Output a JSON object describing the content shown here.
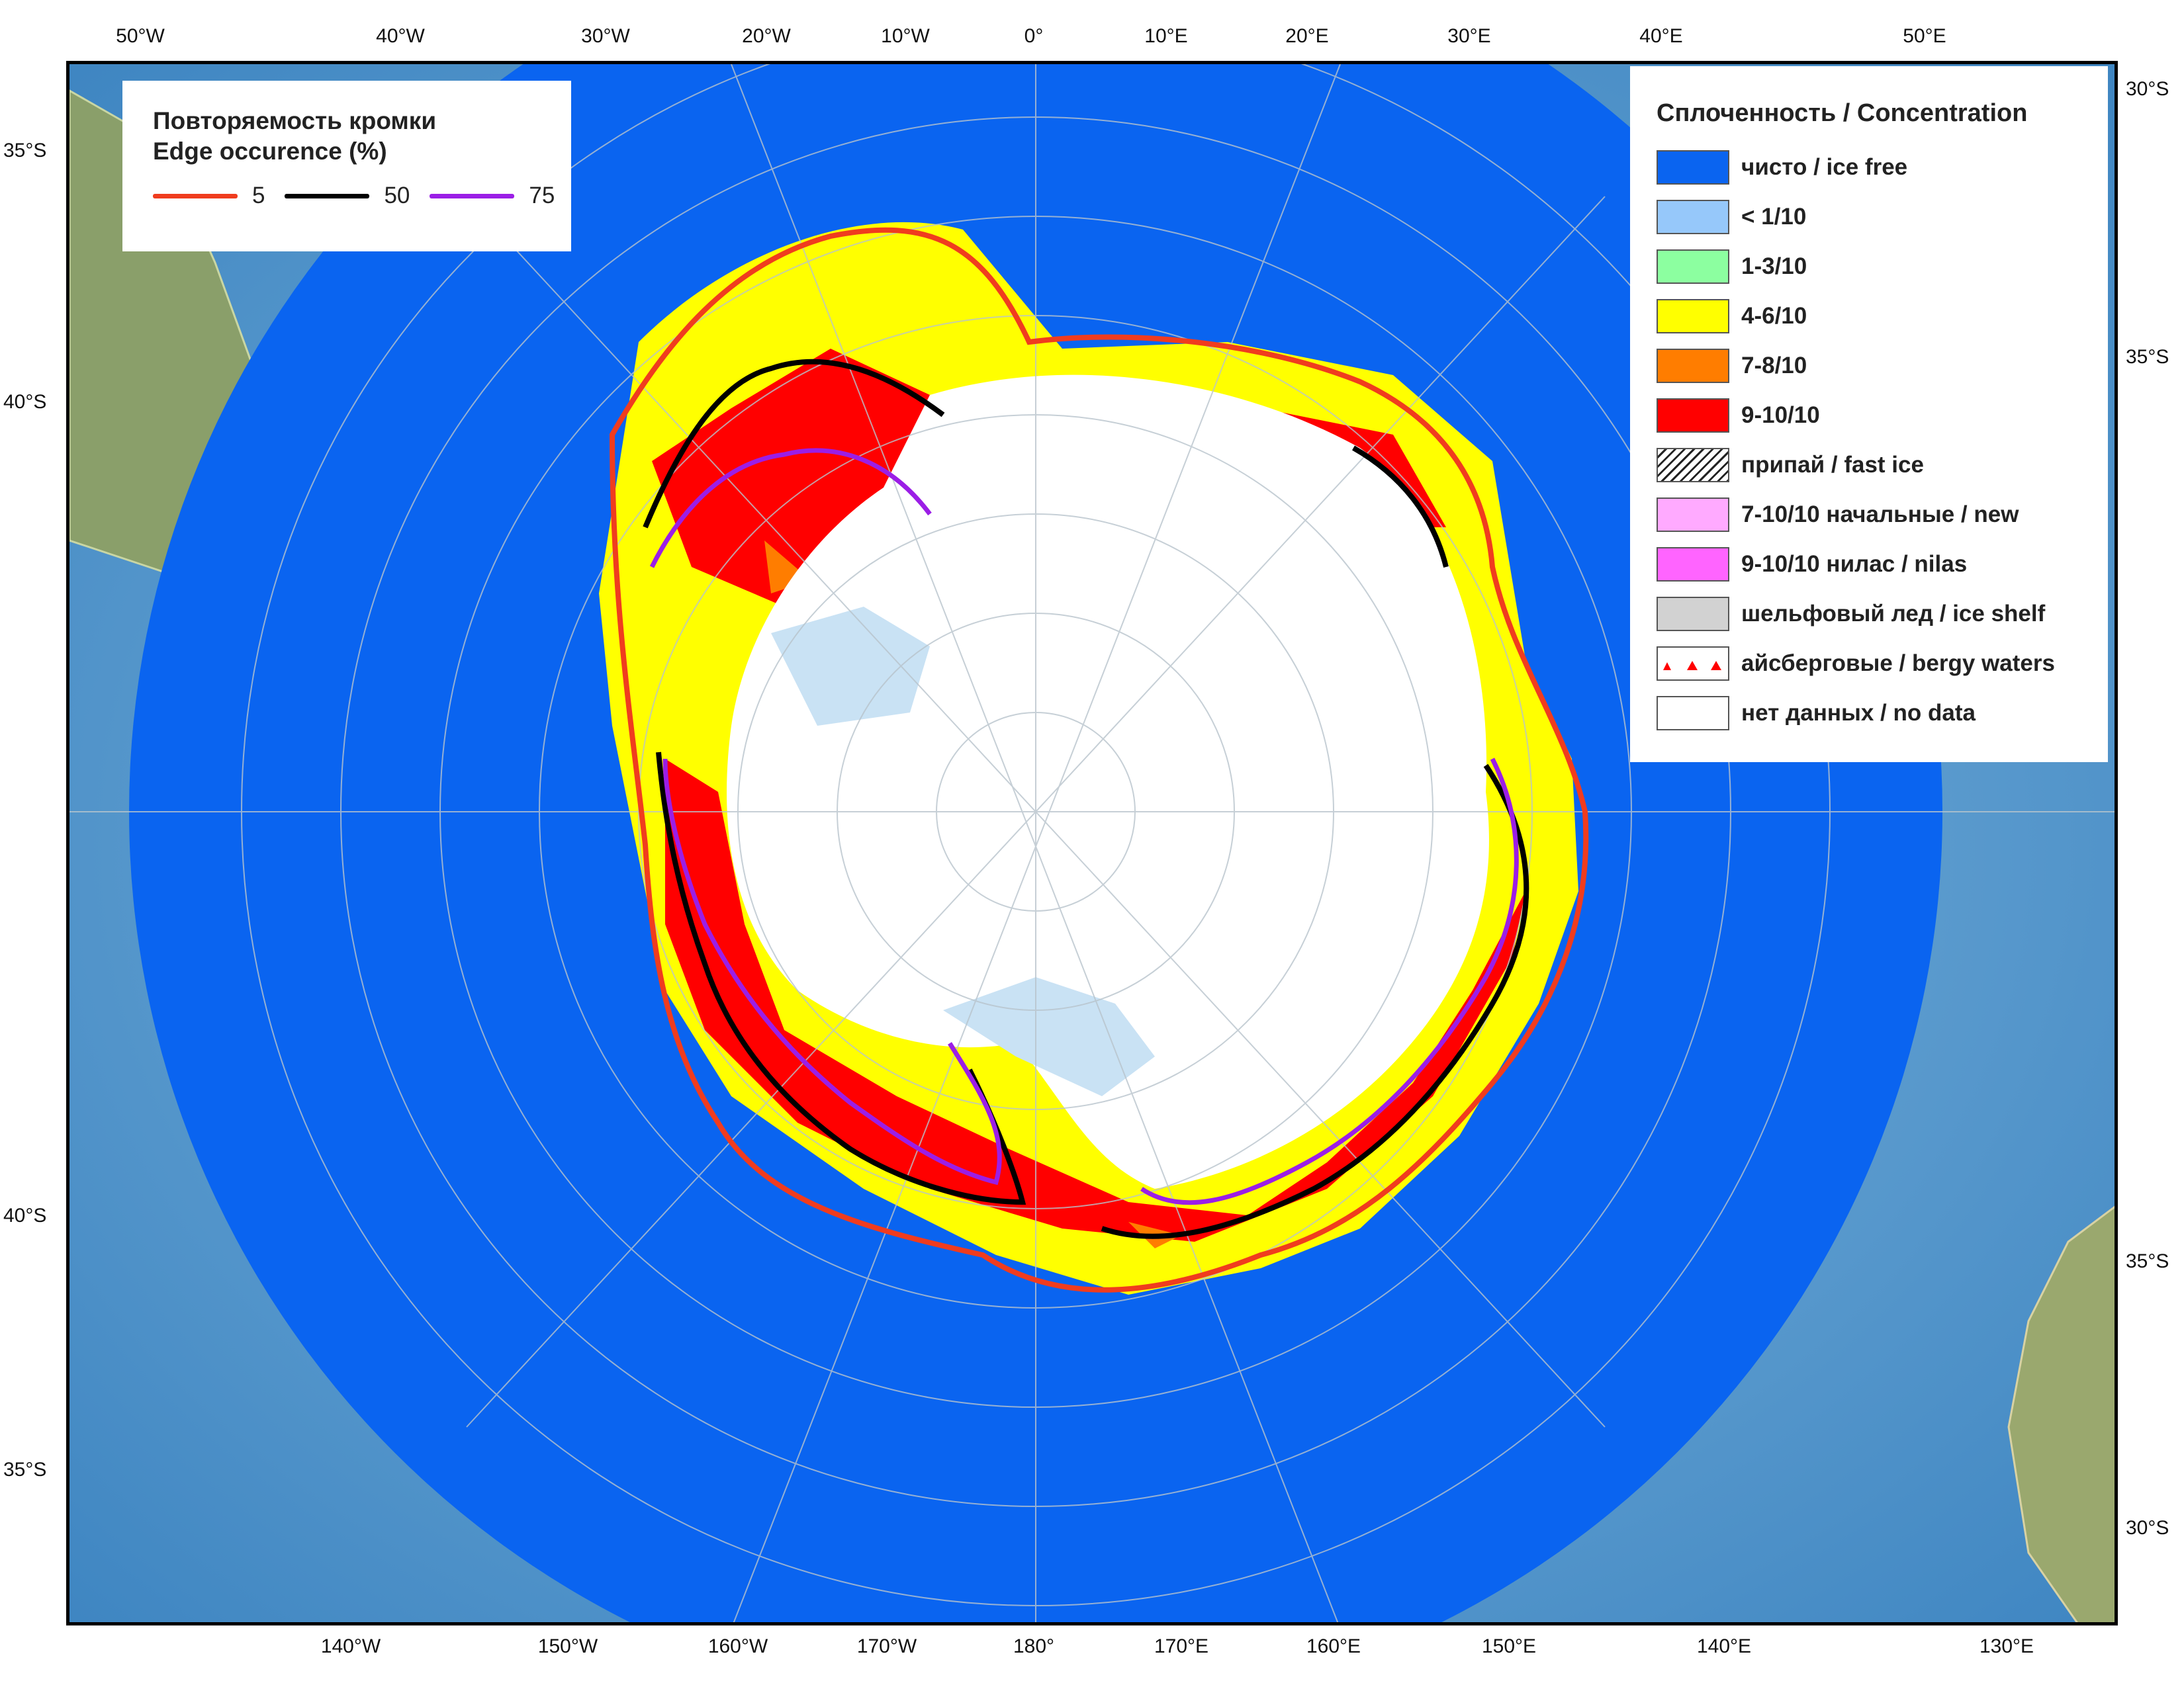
{
  "map": {
    "graticule_top": [
      "50°W",
      "40°W",
      "30°W",
      "20°W",
      "10°W",
      "0°",
      "10°E",
      "20°E",
      "30°E",
      "40°E",
      "50°E"
    ],
    "graticule_bottom": [
      "140°W",
      "150°W",
      "160°W",
      "170°W",
      "180°",
      "170°E",
      "160°E",
      "150°E",
      "140°E",
      "130°E"
    ],
    "graticule_left": [
      "35°S",
      "40°S",
      "40°S",
      "35°S"
    ],
    "graticule_right": [
      "30°S",
      "35°S",
      "35°S",
      "30°S"
    ]
  },
  "edge_legend": {
    "title_ru": "Повторяемость кромки",
    "title_en": "Edge occurence (%)",
    "items": [
      {
        "value": "5",
        "color": "#f03c1e"
      },
      {
        "value": "50",
        "color": "#000000"
      },
      {
        "value": "75",
        "color": "#9b1ee6"
      }
    ]
  },
  "concentration_legend": {
    "title": "Сплоченность / Concentration",
    "items": [
      {
        "label": "чисто / ice free",
        "color": "#0a64f0",
        "pattern": "solid"
      },
      {
        "label": "< 1/10",
        "color": "#96c8fa",
        "pattern": "solid"
      },
      {
        "label": "1-3/10",
        "color": "#8cffa0",
        "pattern": "solid"
      },
      {
        "label": "4-6/10",
        "color": "#ffff00",
        "pattern": "solid"
      },
      {
        "label": "7-8/10",
        "color": "#ff7d00",
        "pattern": "solid"
      },
      {
        "label": "9-10/10",
        "color": "#ff0000",
        "pattern": "solid"
      },
      {
        "label": "припай / fast ice",
        "color": "#ffffff",
        "pattern": "hatch"
      },
      {
        "label": "7-10/10 начальные / new",
        "color": "#ffaaff",
        "pattern": "solid"
      },
      {
        "label": "9-10/10 нилас / nilas",
        "color": "#ff64ff",
        "pattern": "solid"
      },
      {
        "label": "шельфовый лед / ice shelf",
        "color": "#d2d2d2",
        "pattern": "solid"
      },
      {
        "label": "айсберговые / bergy waters",
        "color": "#ffffff",
        "pattern": "triangles"
      },
      {
        "label": "нет данных / no data",
        "color": "#ffffff",
        "pattern": "solid"
      }
    ]
  }
}
